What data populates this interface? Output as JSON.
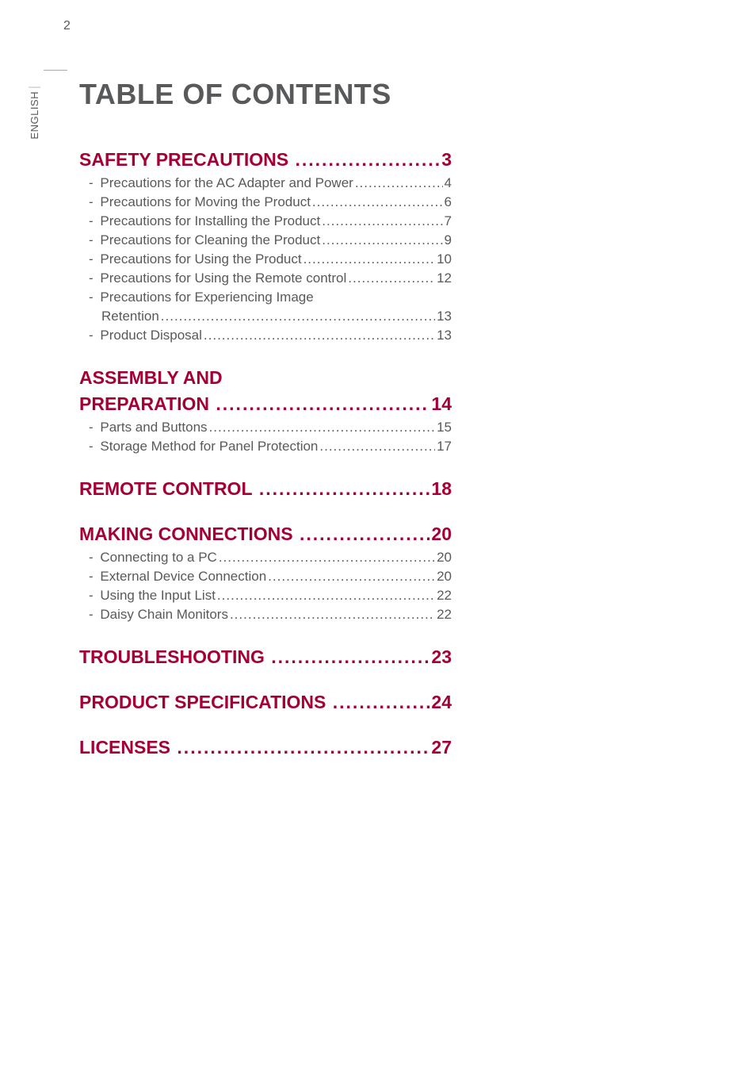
{
  "page_number": "2",
  "side_label": "ENGLISH",
  "title": "TABLE OF CONTENTS",
  "colors": {
    "brand": "#a50034",
    "body_text": "#58595b",
    "background": "#ffffff"
  },
  "typography": {
    "title_fontsize": 36,
    "heading_fontsize": 23,
    "entry_fontsize": 17,
    "side_fontsize": 13,
    "pagenum_fontsize": 16
  },
  "sections": [
    {
      "heading_lines": [
        {
          "text": "SAFETY PRECAUTIONS",
          "page": "3",
          "leader": true
        }
      ],
      "entries": [
        {
          "lines": [
            {
              "text": "Precautions for the AC Adapter and Power",
              "page": "4",
              "leader": true
            }
          ]
        },
        {
          "lines": [
            {
              "text": "Precautions for Moving the Product",
              "page": "6",
              "leader": true
            }
          ]
        },
        {
          "lines": [
            {
              "text": "Precautions for Installing the Product",
              "page": "7",
              "leader": true
            }
          ]
        },
        {
          "lines": [
            {
              "text": "Precautions for Cleaning the Product",
              "page": "9",
              "leader": true
            }
          ]
        },
        {
          "lines": [
            {
              "text": "Precautions for Using the Product",
              "page": "10",
              "leader": true
            }
          ]
        },
        {
          "lines": [
            {
              "text": "Precautions for Using the Remote control",
              "page": "12",
              "leader": true
            }
          ]
        },
        {
          "lines": [
            {
              "text": "Precautions for Experiencing Image",
              "page": "",
              "leader": false
            },
            {
              "text": "Retention",
              "page": "13",
              "leader": true,
              "cont": true
            }
          ]
        },
        {
          "lines": [
            {
              "text": "Product Disposal",
              "page": "13",
              "leader": true
            }
          ]
        }
      ]
    },
    {
      "heading_lines": [
        {
          "text": "ASSEMBLY AND",
          "page": "",
          "leader": false
        },
        {
          "text": "PREPARATION",
          "page": "14",
          "leader": true
        }
      ],
      "entries": [
        {
          "lines": [
            {
              "text": "Parts and Buttons",
              "page": "15",
              "leader": true
            }
          ]
        },
        {
          "lines": [
            {
              "text": "Storage Method for Panel Protection",
              "page": "17",
              "leader": true
            }
          ]
        }
      ]
    },
    {
      "heading_lines": [
        {
          "text": "REMOTE CONTROL",
          "page": "18",
          "leader": true
        }
      ],
      "entries": []
    },
    {
      "heading_lines": [
        {
          "text": "MAKING CONNECTIONS",
          "page": "20",
          "leader": true
        }
      ],
      "entries": [
        {
          "lines": [
            {
              "text": "Connecting to a PC",
              "page": "20",
              "leader": true
            }
          ]
        },
        {
          "lines": [
            {
              "text": "External Device Connection",
              "page": "20",
              "leader": true
            }
          ]
        },
        {
          "lines": [
            {
              "text": "Using the Input List",
              "page": "22",
              "leader": true
            }
          ]
        },
        {
          "lines": [
            {
              "text": "Daisy Chain Monitors",
              "page": "22",
              "leader": true
            }
          ]
        }
      ]
    },
    {
      "heading_lines": [
        {
          "text": "TROUBLESHOOTING",
          "page": "23",
          "leader": true
        }
      ],
      "entries": []
    },
    {
      "heading_lines": [
        {
          "text": "PRODUCT SPECIFICATIONS",
          "page": "24",
          "leader": true
        }
      ],
      "entries": []
    },
    {
      "heading_lines": [
        {
          "text": "LICENSES",
          "page": "27",
          "leader": true
        }
      ],
      "entries": []
    }
  ]
}
